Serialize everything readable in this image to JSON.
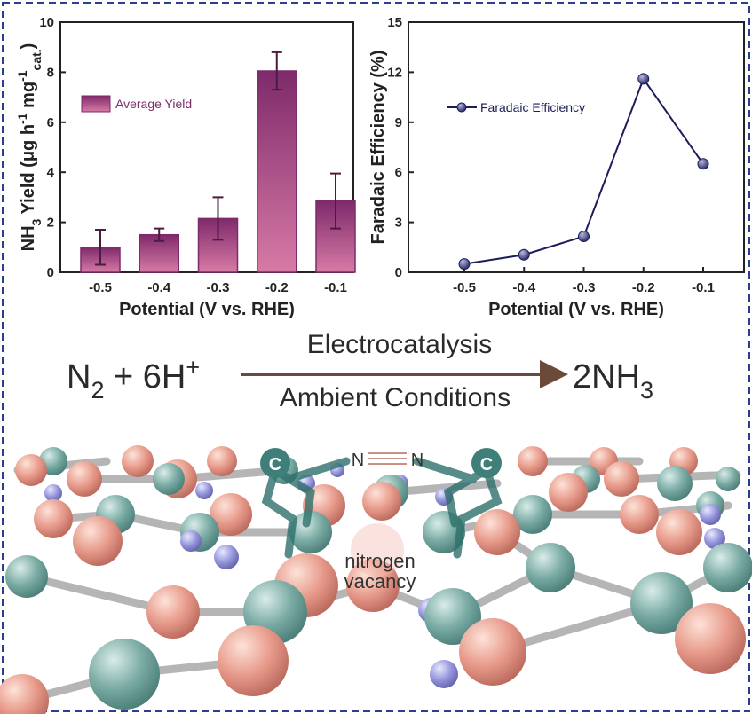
{
  "chart_data": [
    {
      "type": "bar",
      "x_label": "Potential (V vs. RHE)",
      "y_label": [
        "NH",
        "3",
        " Yield (μg h",
        "-1",
        " mg",
        "-1",
        "cat.",
        ")"
      ],
      "categories": [
        "-0.5",
        "-0.4",
        "-0.3",
        "-0.2",
        "-0.1"
      ],
      "series": [
        {
          "name": "Average Yield",
          "color": "#7e2a6b",
          "values": [
            1.0,
            1.5,
            2.15,
            8.05,
            2.85
          ],
          "errors": [
            0.7,
            0.25,
            0.85,
            0.75,
            1.1
          ]
        }
      ],
      "ylim": [
        0,
        10
      ],
      "yticks": [
        0,
        2,
        4,
        6,
        8,
        10
      ],
      "legend": "upper left"
    },
    {
      "type": "line",
      "x_label": "Potential (V vs. RHE)",
      "y_label": [
        "Faradaic Efficiency (%)"
      ],
      "categories": [
        "-0.5",
        "-0.4",
        "-0.3",
        "-0.2",
        "-0.1"
      ],
      "series": [
        {
          "name": "Faradaic Efficiency",
          "color": "#1c1c5a",
          "values": [
            0.5,
            1.05,
            2.15,
            11.6,
            6.5
          ]
        }
      ],
      "ylim": [
        0,
        15
      ],
      "yticks": [
        0,
        3,
        6,
        9,
        12,
        15
      ],
      "legend": "upper left"
    }
  ],
  "equation": {
    "reactant": [
      "N",
      "2",
      " + 6H",
      "+"
    ],
    "above_arrow": "Electrocatalysis",
    "below_arrow": "Ambient Conditions",
    "product": [
      "2NH",
      "3"
    ]
  },
  "structure_labels": {
    "carbon": [
      "C",
      "C"
    ],
    "nitrogen": [
      "N",
      "N"
    ],
    "vacancy": [
      "nitrogen",
      "vacancy"
    ]
  }
}
